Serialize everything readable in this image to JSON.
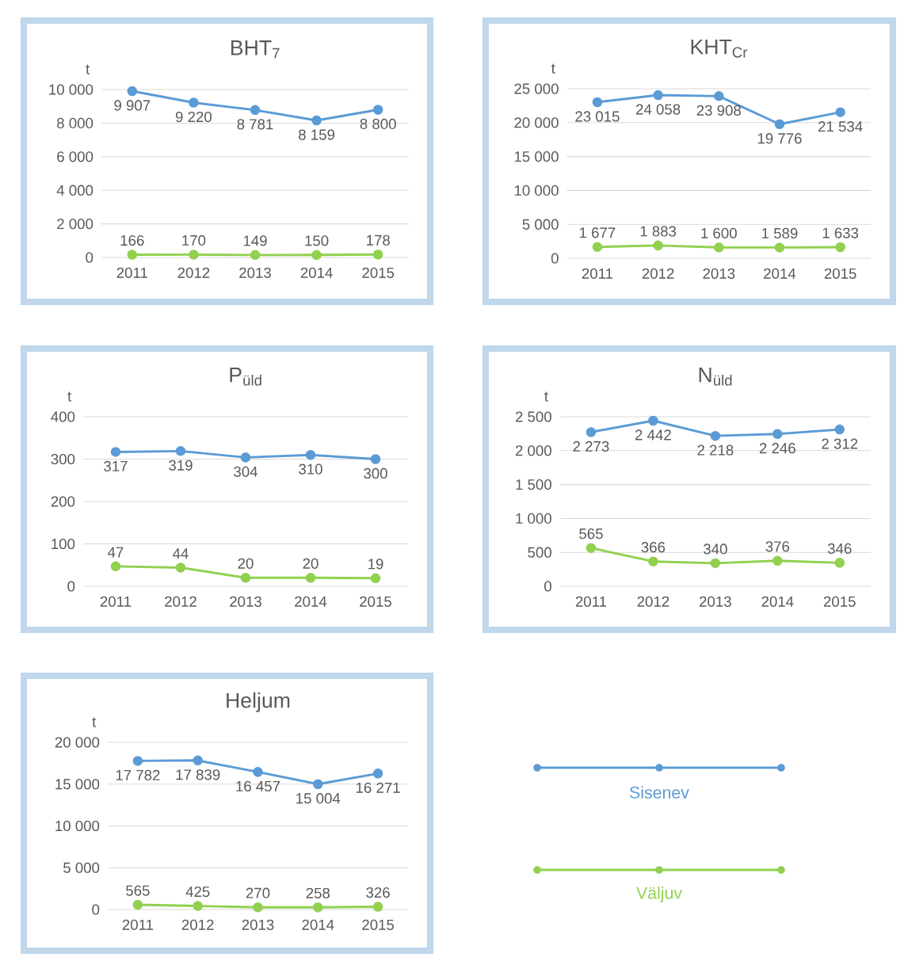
{
  "chart_data": [
    {
      "type": "line",
      "title": "BHT$_{7}$",
      "ylabel": "t",
      "categories": [
        "2011",
        "2012",
        "2013",
        "2014",
        "2015"
      ],
      "ylim": [
        0,
        10000
      ],
      "yticks": [
        0,
        {
          "value": 2000,
          "label": "2 000"
        },
        {
          "value": 4000,
          "label": "4 000"
        },
        {
          "value": 6000,
          "label": "6 000"
        },
        {
          "value": 8000,
          "label": "8 000"
        },
        {
          "value": 10000,
          "label": "10 000"
        }
      ],
      "grid": "y",
      "marker": "circle",
      "series": [
        {
          "color": "#5b9bd5",
          "values": [
            9907,
            9220,
            8781,
            8159,
            8800
          ],
          "value_labels": [
            "9 907",
            "9 220",
            "8 781",
            "8 159",
            "8 800"
          ]
        },
        {
          "color": "#92d050",
          "values": [
            166,
            170,
            149,
            150,
            178
          ],
          "value_labels": [
            "166",
            "170",
            "149",
            "150",
            "178"
          ]
        }
      ]
    },
    {
      "type": "line",
      "title": "KHT$_{Cr}$",
      "ylabel": "t",
      "categories": [
        "2011",
        "2012",
        "2013",
        "2014",
        "2015"
      ],
      "ylim": [
        0,
        25000
      ],
      "yticks": [
        0,
        {
          "value": 5000,
          "label": "5 000"
        },
        {
          "value": 10000,
          "label": "10 000"
        },
        {
          "value": 15000,
          "label": "15 000"
        },
        {
          "value": 20000,
          "label": "20 000"
        },
        {
          "value": 25000,
          "label": "25 000"
        }
      ],
      "grid": "y",
      "marker": "circle",
      "series": [
        {
          "color": "#5b9bd5",
          "values": [
            23015,
            24058,
            23908,
            19776,
            21534
          ],
          "value_labels": [
            "23 015",
            "24 058",
            "23 908",
            "19 776",
            "21 534"
          ]
        },
        {
          "color": "#92d050",
          "values": [
            1677,
            1883,
            1600,
            1589,
            1633
          ],
          "value_labels": [
            "1 677",
            "1 883",
            "1 600",
            "1 589",
            "1 633"
          ]
        }
      ]
    },
    {
      "type": "line",
      "title": "P$_{üld}$",
      "ylabel": "t",
      "categories": [
        "2011",
        "2012",
        "2013",
        "2014",
        "2015"
      ],
      "ylim": [
        0,
        400
      ],
      "yticks": [
        0,
        100,
        200,
        300,
        400
      ],
      "grid": "y",
      "marker": "circle",
      "series": [
        {
          "color": "#5b9bd5",
          "values": [
            317,
            319,
            304,
            310,
            300
          ],
          "value_labels": [
            "317",
            "319",
            "304",
            "310",
            "300"
          ]
        },
        {
          "color": "#92d050",
          "values": [
            47,
            44,
            20,
            20,
            19
          ],
          "value_labels": [
            "47",
            "44",
            "20",
            "20",
            "19"
          ]
        }
      ]
    },
    {
      "type": "line",
      "title": "N$_{üld}$",
      "ylabel": "t",
      "categories": [
        "2011",
        "2012",
        "2013",
        "2014",
        "2015"
      ],
      "ylim": [
        0,
        2500
      ],
      "yticks": [
        0,
        500,
        {
          "value": 1000,
          "label": "1 000"
        },
        {
          "value": 1500,
          "label": "1 500"
        },
        {
          "value": 2000,
          "label": "2 000"
        },
        {
          "value": 2500,
          "label": "2 500"
        }
      ],
      "grid": "y",
      "marker": "circle",
      "series": [
        {
          "color": "#5b9bd5",
          "values": [
            2273,
            2442,
            2218,
            2246,
            2312
          ],
          "value_labels": [
            "2 273",
            "2 442",
            "2 218",
            "2 246",
            "2 312"
          ]
        },
        {
          "color": "#92d050",
          "values": [
            565,
            366,
            340,
            376,
            346
          ],
          "value_labels": [
            "565",
            "366",
            "340",
            "376",
            "346"
          ]
        }
      ]
    },
    {
      "type": "line",
      "title": "Heljum",
      "ylabel": "t",
      "categories": [
        "2011",
        "2012",
        "2013",
        "2014",
        "2015"
      ],
      "ylim": [
        0,
        20000
      ],
      "yticks": [
        0,
        {
          "value": 5000,
          "label": "5 000"
        },
        {
          "value": 10000,
          "label": "10 000"
        },
        {
          "value": 15000,
          "label": "15 000"
        },
        {
          "value": 20000,
          "label": "20 000"
        }
      ],
      "grid": "y",
      "marker": "circle",
      "legend": "right",
      "series": [
        {
          "name": "Sisenev",
          "color": "#5b9bd5",
          "values": [
            17782,
            17839,
            16457,
            15004,
            16271
          ],
          "value_labels": [
            "17 782",
            "17 839",
            "16 457",
            "15 004",
            "16 271"
          ]
        },
        {
          "name": "Väljuv",
          "color": "#92d050",
          "values": [
            565,
            425,
            270,
            258,
            326
          ],
          "value_labels": [
            "565",
            "425",
            "270",
            "258",
            "326"
          ]
        }
      ]
    }
  ]
}
